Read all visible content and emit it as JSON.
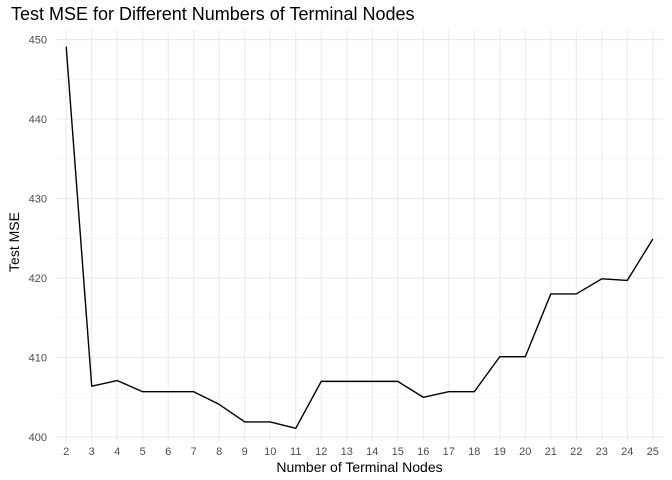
{
  "chart_data": {
    "type": "line",
    "title": "Test MSE for Different Numbers of Terminal Nodes",
    "xlabel": "Number of Terminal Nodes",
    "ylabel": "Test MSE",
    "x": [
      2,
      3,
      4,
      5,
      6,
      7,
      8,
      9,
      10,
      11,
      12,
      13,
      14,
      15,
      16,
      17,
      18,
      19,
      20,
      21,
      22,
      23,
      24,
      25
    ],
    "series": [
      {
        "values": [
          449.1,
          406.4,
          407.1,
          405.7,
          405.7,
          405.7,
          404.1,
          401.9,
          401.9,
          401.1,
          407.0,
          407.0,
          407.0,
          407.0,
          405.0,
          405.7,
          405.7,
          410.1,
          410.1,
          418.0,
          418.0,
          419.9,
          419.7,
          424.9
        ],
        "color": "#000000"
      }
    ],
    "xlim": [
      1.6,
      25.4
    ],
    "ylim": [
      399.5,
      451.2
    ],
    "yticks": [
      400,
      410,
      420,
      430,
      440,
      450
    ],
    "grid": true,
    "legend": "none"
  }
}
